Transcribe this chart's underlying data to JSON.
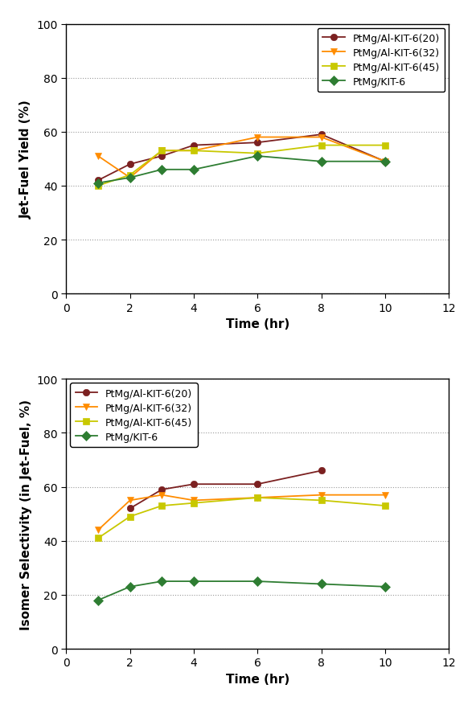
{
  "time": [
    1,
    2,
    3,
    4,
    6,
    8,
    10
  ],
  "p1_20": [
    42,
    48,
    51,
    55,
    56,
    59,
    49
  ],
  "p1_32": [
    51,
    43,
    53,
    53,
    58,
    58,
    49
  ],
  "p1_45": [
    40,
    44,
    53,
    53,
    52,
    55,
    55
  ],
  "p1_kit": [
    41,
    43,
    46,
    46,
    51,
    49,
    49
  ],
  "p2_20_t": [
    2,
    3,
    4,
    6,
    8
  ],
  "p2_20": [
    52,
    59,
    61,
    61,
    66
  ],
  "p2_32": [
    44,
    55,
    57,
    55,
    56,
    57,
    57
  ],
  "p2_45": [
    41,
    49,
    53,
    54,
    56,
    55,
    53
  ],
  "p2_kit": [
    18,
    23,
    25,
    25,
    25,
    24,
    23
  ],
  "legend_labels": [
    "PtMg/Al-KIT-6(20)",
    "PtMg/Al-KIT-6(32)",
    "PtMg/Al-KIT-6(45)",
    "PtMg/KIT-6"
  ],
  "colors": [
    "#7B2020",
    "#FF8C00",
    "#C8C800",
    "#2E7D32"
  ],
  "markers": [
    "o",
    "v",
    "s",
    "D"
  ],
  "grid_color": "#999999",
  "tick_fontsize": 10,
  "label_fontsize": 11,
  "legend_fontsize": 9,
  "marker_size": 6,
  "linewidth": 1.3,
  "background_color": "#FFFFFF"
}
